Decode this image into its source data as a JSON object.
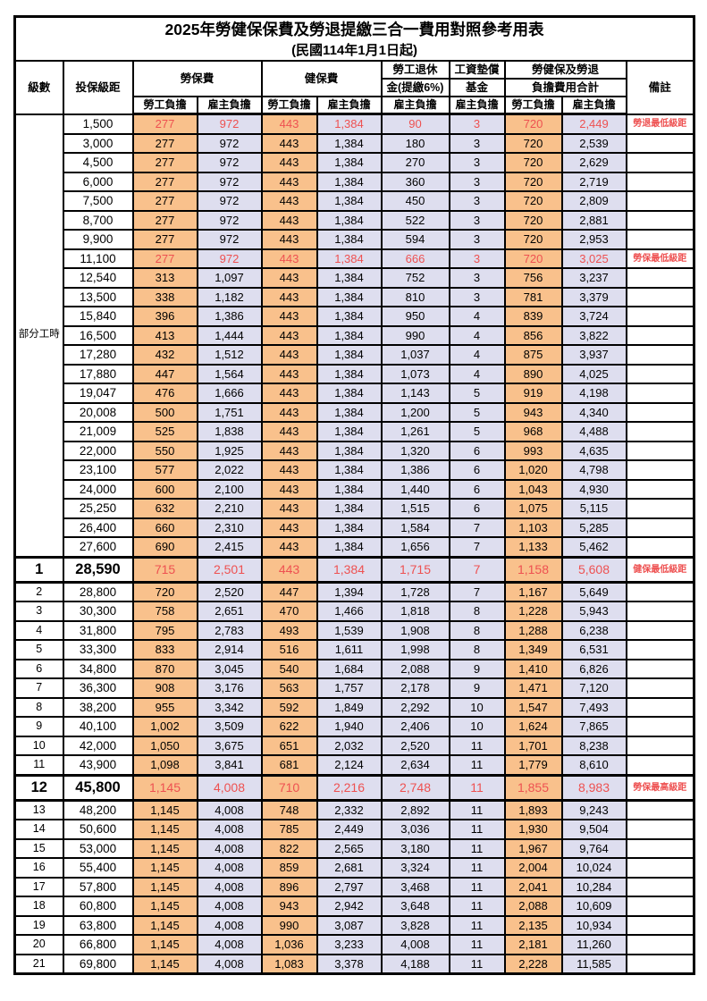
{
  "title": "2025年勞健保保費及勞退提繳三合一費用對照參考用表",
  "subtitle": "(民國114年1月1日起)",
  "header": {
    "level": "級數",
    "bracket": "投保級距",
    "labor_ins": "勞保費",
    "health_ins": "健保費",
    "pension_l1": "勞工退休",
    "pension_l2": "金(提繳6%)",
    "wage_fund_l1": "工資墊償",
    "wage_fund_l2": "基金",
    "total_l1": "勞健保及勞退",
    "total_l2": "負擔費用合計",
    "employee": "勞工負擔",
    "employer": "雇主負擔",
    "remark": "備註"
  },
  "part_time_label": "部分工時",
  "colors": {
    "employee_bg": "#F9C18C",
    "employer_bg": "#DEDEEF",
    "red_text": "#EE5151",
    "border": "#000000"
  },
  "rows": [
    {
      "group": "parttime",
      "level": "",
      "bracket": "1,500",
      "values": [
        "277",
        "972",
        "443",
        "1,384",
        "90",
        "3",
        "720",
        "2,449"
      ],
      "remark": "勞退最低級距",
      "red": true,
      "big": false,
      "thick": false
    },
    {
      "group": "parttime",
      "level": "",
      "bracket": "3,000",
      "values": [
        "277",
        "972",
        "443",
        "1,384",
        "180",
        "3",
        "720",
        "2,539"
      ],
      "remark": "",
      "red": false,
      "big": false,
      "thick": false
    },
    {
      "group": "parttime",
      "level": "",
      "bracket": "4,500",
      "values": [
        "277",
        "972",
        "443",
        "1,384",
        "270",
        "3",
        "720",
        "2,629"
      ],
      "remark": "",
      "red": false,
      "big": false,
      "thick": false
    },
    {
      "group": "parttime",
      "level": "",
      "bracket": "6,000",
      "values": [
        "277",
        "972",
        "443",
        "1,384",
        "360",
        "3",
        "720",
        "2,719"
      ],
      "remark": "",
      "red": false,
      "big": false,
      "thick": false
    },
    {
      "group": "parttime",
      "level": "",
      "bracket": "7,500",
      "values": [
        "277",
        "972",
        "443",
        "1,384",
        "450",
        "3",
        "720",
        "2,809"
      ],
      "remark": "",
      "red": false,
      "big": false,
      "thick": false
    },
    {
      "group": "parttime",
      "level": "",
      "bracket": "8,700",
      "values": [
        "277",
        "972",
        "443",
        "1,384",
        "522",
        "3",
        "720",
        "2,881"
      ],
      "remark": "",
      "red": false,
      "big": false,
      "thick": false
    },
    {
      "group": "parttime",
      "level": "",
      "bracket": "9,900",
      "values": [
        "277",
        "972",
        "443",
        "1,384",
        "594",
        "3",
        "720",
        "2,953"
      ],
      "remark": "",
      "red": false,
      "big": false,
      "thick": false
    },
    {
      "group": "parttime",
      "level": "",
      "bracket": "11,100",
      "values": [
        "277",
        "972",
        "443",
        "1,384",
        "666",
        "3",
        "720",
        "3,025"
      ],
      "remark": "勞保最低級距",
      "red": true,
      "big": false,
      "thick": false
    },
    {
      "group": "parttime",
      "level": "",
      "bracket": "12,540",
      "values": [
        "313",
        "1,097",
        "443",
        "1,384",
        "752",
        "3",
        "756",
        "3,237"
      ],
      "remark": "",
      "red": false,
      "big": false,
      "thick": false
    },
    {
      "group": "parttime",
      "level": "",
      "bracket": "13,500",
      "values": [
        "338",
        "1,182",
        "443",
        "1,384",
        "810",
        "3",
        "781",
        "3,379"
      ],
      "remark": "",
      "red": false,
      "big": false,
      "thick": false
    },
    {
      "group": "parttime",
      "level": "",
      "bracket": "15,840",
      "values": [
        "396",
        "1,386",
        "443",
        "1,384",
        "950",
        "4",
        "839",
        "3,724"
      ],
      "remark": "",
      "red": false,
      "big": false,
      "thick": false
    },
    {
      "group": "parttime",
      "level": "",
      "bracket": "16,500",
      "values": [
        "413",
        "1,444",
        "443",
        "1,384",
        "990",
        "4",
        "856",
        "3,822"
      ],
      "remark": "",
      "red": false,
      "big": false,
      "thick": false
    },
    {
      "group": "parttime",
      "level": "",
      "bracket": "17,280",
      "values": [
        "432",
        "1,512",
        "443",
        "1,384",
        "1,037",
        "4",
        "875",
        "3,937"
      ],
      "remark": "",
      "red": false,
      "big": false,
      "thick": false
    },
    {
      "group": "parttime",
      "level": "",
      "bracket": "17,880",
      "values": [
        "447",
        "1,564",
        "443",
        "1,384",
        "1,073",
        "4",
        "890",
        "4,025"
      ],
      "remark": "",
      "red": false,
      "big": false,
      "thick": false
    },
    {
      "group": "parttime",
      "level": "",
      "bracket": "19,047",
      "values": [
        "476",
        "1,666",
        "443",
        "1,384",
        "1,143",
        "5",
        "919",
        "4,198"
      ],
      "remark": "",
      "red": false,
      "big": false,
      "thick": false
    },
    {
      "group": "parttime",
      "level": "",
      "bracket": "20,008",
      "values": [
        "500",
        "1,751",
        "443",
        "1,384",
        "1,200",
        "5",
        "943",
        "4,340"
      ],
      "remark": "",
      "red": false,
      "big": false,
      "thick": false
    },
    {
      "group": "parttime",
      "level": "",
      "bracket": "21,009",
      "values": [
        "525",
        "1,838",
        "443",
        "1,384",
        "1,261",
        "5",
        "968",
        "4,488"
      ],
      "remark": "",
      "red": false,
      "big": false,
      "thick": false
    },
    {
      "group": "parttime",
      "level": "",
      "bracket": "22,000",
      "values": [
        "550",
        "1,925",
        "443",
        "1,384",
        "1,320",
        "6",
        "993",
        "4,635"
      ],
      "remark": "",
      "red": false,
      "big": false,
      "thick": false
    },
    {
      "group": "parttime",
      "level": "",
      "bracket": "23,100",
      "values": [
        "577",
        "2,022",
        "443",
        "1,384",
        "1,386",
        "6",
        "1,020",
        "4,798"
      ],
      "remark": "",
      "red": false,
      "big": false,
      "thick": false
    },
    {
      "group": "parttime",
      "level": "",
      "bracket": "24,000",
      "values": [
        "600",
        "2,100",
        "443",
        "1,384",
        "1,440",
        "6",
        "1,043",
        "4,930"
      ],
      "remark": "",
      "red": false,
      "big": false,
      "thick": false
    },
    {
      "group": "parttime",
      "level": "",
      "bracket": "25,250",
      "values": [
        "632",
        "2,210",
        "443",
        "1,384",
        "1,515",
        "6",
        "1,075",
        "5,115"
      ],
      "remark": "",
      "red": false,
      "big": false,
      "thick": false
    },
    {
      "group": "parttime",
      "level": "",
      "bracket": "26,400",
      "values": [
        "660",
        "2,310",
        "443",
        "1,384",
        "1,584",
        "7",
        "1,103",
        "5,285"
      ],
      "remark": "",
      "red": false,
      "big": false,
      "thick": false
    },
    {
      "group": "parttime",
      "level": "",
      "bracket": "27,600",
      "values": [
        "690",
        "2,415",
        "443",
        "1,384",
        "1,656",
        "7",
        "1,133",
        "5,462"
      ],
      "remark": "",
      "red": false,
      "big": false,
      "thick": false
    },
    {
      "group": "numbered",
      "level": "1",
      "bracket": "28,590",
      "values": [
        "715",
        "2,501",
        "443",
        "1,384",
        "1,715",
        "7",
        "1,158",
        "5,608"
      ],
      "remark": "健保最低級距",
      "red": true,
      "big": true,
      "thick": true
    },
    {
      "group": "numbered",
      "level": "2",
      "bracket": "28,800",
      "values": [
        "720",
        "2,520",
        "447",
        "1,394",
        "1,728",
        "7",
        "1,167",
        "5,649"
      ],
      "remark": "",
      "red": false,
      "big": false,
      "thick": false
    },
    {
      "group": "numbered",
      "level": "3",
      "bracket": "30,300",
      "values": [
        "758",
        "2,651",
        "470",
        "1,466",
        "1,818",
        "8",
        "1,228",
        "5,943"
      ],
      "remark": "",
      "red": false,
      "big": false,
      "thick": false
    },
    {
      "group": "numbered",
      "level": "4",
      "bracket": "31,800",
      "values": [
        "795",
        "2,783",
        "493",
        "1,539",
        "1,908",
        "8",
        "1,288",
        "6,238"
      ],
      "remark": "",
      "red": false,
      "big": false,
      "thick": false
    },
    {
      "group": "numbered",
      "level": "5",
      "bracket": "33,300",
      "values": [
        "833",
        "2,914",
        "516",
        "1,611",
        "1,998",
        "8",
        "1,349",
        "6,531"
      ],
      "remark": "",
      "red": false,
      "big": false,
      "thick": false
    },
    {
      "group": "numbered",
      "level": "6",
      "bracket": "34,800",
      "values": [
        "870",
        "3,045",
        "540",
        "1,684",
        "2,088",
        "9",
        "1,410",
        "6,826"
      ],
      "remark": "",
      "red": false,
      "big": false,
      "thick": false
    },
    {
      "group": "numbered",
      "level": "7",
      "bracket": "36,300",
      "values": [
        "908",
        "3,176",
        "563",
        "1,757",
        "2,178",
        "9",
        "1,471",
        "7,120"
      ],
      "remark": "",
      "red": false,
      "big": false,
      "thick": false
    },
    {
      "group": "numbered",
      "level": "8",
      "bracket": "38,200",
      "values": [
        "955",
        "3,342",
        "592",
        "1,849",
        "2,292",
        "10",
        "1,547",
        "7,493"
      ],
      "remark": "",
      "red": false,
      "big": false,
      "thick": false
    },
    {
      "group": "numbered",
      "level": "9",
      "bracket": "40,100",
      "values": [
        "1,002",
        "3,509",
        "622",
        "1,940",
        "2,406",
        "10",
        "1,624",
        "7,865"
      ],
      "remark": "",
      "red": false,
      "big": false,
      "thick": false
    },
    {
      "group": "numbered",
      "level": "10",
      "bracket": "42,000",
      "values": [
        "1,050",
        "3,675",
        "651",
        "2,032",
        "2,520",
        "11",
        "1,701",
        "8,238"
      ],
      "remark": "",
      "red": false,
      "big": false,
      "thick": false
    },
    {
      "group": "numbered",
      "level": "11",
      "bracket": "43,900",
      "values": [
        "1,098",
        "3,841",
        "681",
        "2,124",
        "2,634",
        "11",
        "1,779",
        "8,610"
      ],
      "remark": "",
      "red": false,
      "big": false,
      "thick": false
    },
    {
      "group": "numbered",
      "level": "12",
      "bracket": "45,800",
      "values": [
        "1,145",
        "4,008",
        "710",
        "2,216",
        "2,748",
        "11",
        "1,855",
        "8,983"
      ],
      "remark": "勞保最高級距",
      "red": true,
      "big": true,
      "thick": true
    },
    {
      "group": "numbered",
      "level": "13",
      "bracket": "48,200",
      "values": [
        "1,145",
        "4,008",
        "748",
        "2,332",
        "2,892",
        "11",
        "1,893",
        "9,243"
      ],
      "remark": "",
      "red": false,
      "big": false,
      "thick": false
    },
    {
      "group": "numbered",
      "level": "14",
      "bracket": "50,600",
      "values": [
        "1,145",
        "4,008",
        "785",
        "2,449",
        "3,036",
        "11",
        "1,930",
        "9,504"
      ],
      "remark": "",
      "red": false,
      "big": false,
      "thick": false
    },
    {
      "group": "numbered",
      "level": "15",
      "bracket": "53,000",
      "values": [
        "1,145",
        "4,008",
        "822",
        "2,565",
        "3,180",
        "11",
        "1,967",
        "9,764"
      ],
      "remark": "",
      "red": false,
      "big": false,
      "thick": false
    },
    {
      "group": "numbered",
      "level": "16",
      "bracket": "55,400",
      "values": [
        "1,145",
        "4,008",
        "859",
        "2,681",
        "3,324",
        "11",
        "2,004",
        "10,024"
      ],
      "remark": "",
      "red": false,
      "big": false,
      "thick": false
    },
    {
      "group": "numbered",
      "level": "17",
      "bracket": "57,800",
      "values": [
        "1,145",
        "4,008",
        "896",
        "2,797",
        "3,468",
        "11",
        "2,041",
        "10,284"
      ],
      "remark": "",
      "red": false,
      "big": false,
      "thick": false
    },
    {
      "group": "numbered",
      "level": "18",
      "bracket": "60,800",
      "values": [
        "1,145",
        "4,008",
        "943",
        "2,942",
        "3,648",
        "11",
        "2,088",
        "10,609"
      ],
      "remark": "",
      "red": false,
      "big": false,
      "thick": false
    },
    {
      "group": "numbered",
      "level": "19",
      "bracket": "63,800",
      "values": [
        "1,145",
        "4,008",
        "990",
        "3,087",
        "3,828",
        "11",
        "2,135",
        "10,934"
      ],
      "remark": "",
      "red": false,
      "big": false,
      "thick": false
    },
    {
      "group": "numbered",
      "level": "20",
      "bracket": "66,800",
      "values": [
        "1,145",
        "4,008",
        "1,036",
        "3,233",
        "4,008",
        "11",
        "2,181",
        "11,260"
      ],
      "remark": "",
      "red": false,
      "big": false,
      "thick": false
    },
    {
      "group": "numbered",
      "level": "21",
      "bracket": "69,800",
      "values": [
        "1,145",
        "4,008",
        "1,083",
        "3,378",
        "4,188",
        "11",
        "2,228",
        "11,585"
      ],
      "remark": "",
      "red": false,
      "big": false,
      "thick": false
    }
  ]
}
